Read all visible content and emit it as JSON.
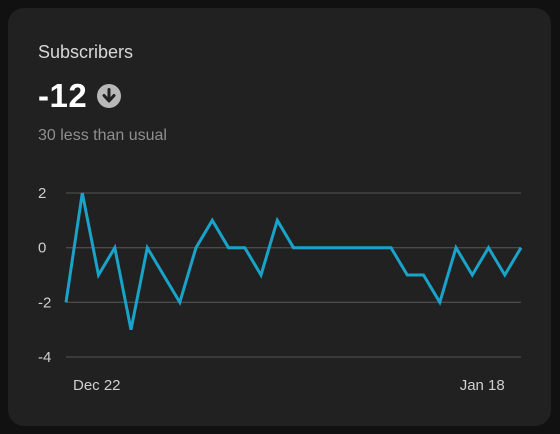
{
  "card": {
    "title": "Subscribers",
    "value": "-12",
    "trend_icon": "arrow-down-circle-icon",
    "subtitle": "30 less than usual"
  },
  "colors": {
    "line": "#1aa3c9",
    "grid": "#4a4a4a",
    "card_bg": "#212121",
    "page_bg": "#111111",
    "trend_icon": "#b8b8b8"
  },
  "chart_data": {
    "type": "line",
    "ylim": [
      -4,
      2
    ],
    "yticks": [
      2,
      0,
      -2,
      -4
    ],
    "xtick_labels": [
      {
        "index": 0,
        "label": "Dec 22"
      },
      {
        "index": 27,
        "label": "Jan 18"
      }
    ],
    "grid": true,
    "series": [
      {
        "values": [
          -2,
          2,
          -1,
          0,
          -3,
          0,
          -1,
          -2,
          0,
          1,
          0,
          0,
          -1,
          1,
          0,
          0,
          0,
          0,
          0,
          0,
          0,
          -1,
          -1,
          -2,
          0,
          -1,
          0,
          -1,
          0
        ]
      }
    ]
  }
}
